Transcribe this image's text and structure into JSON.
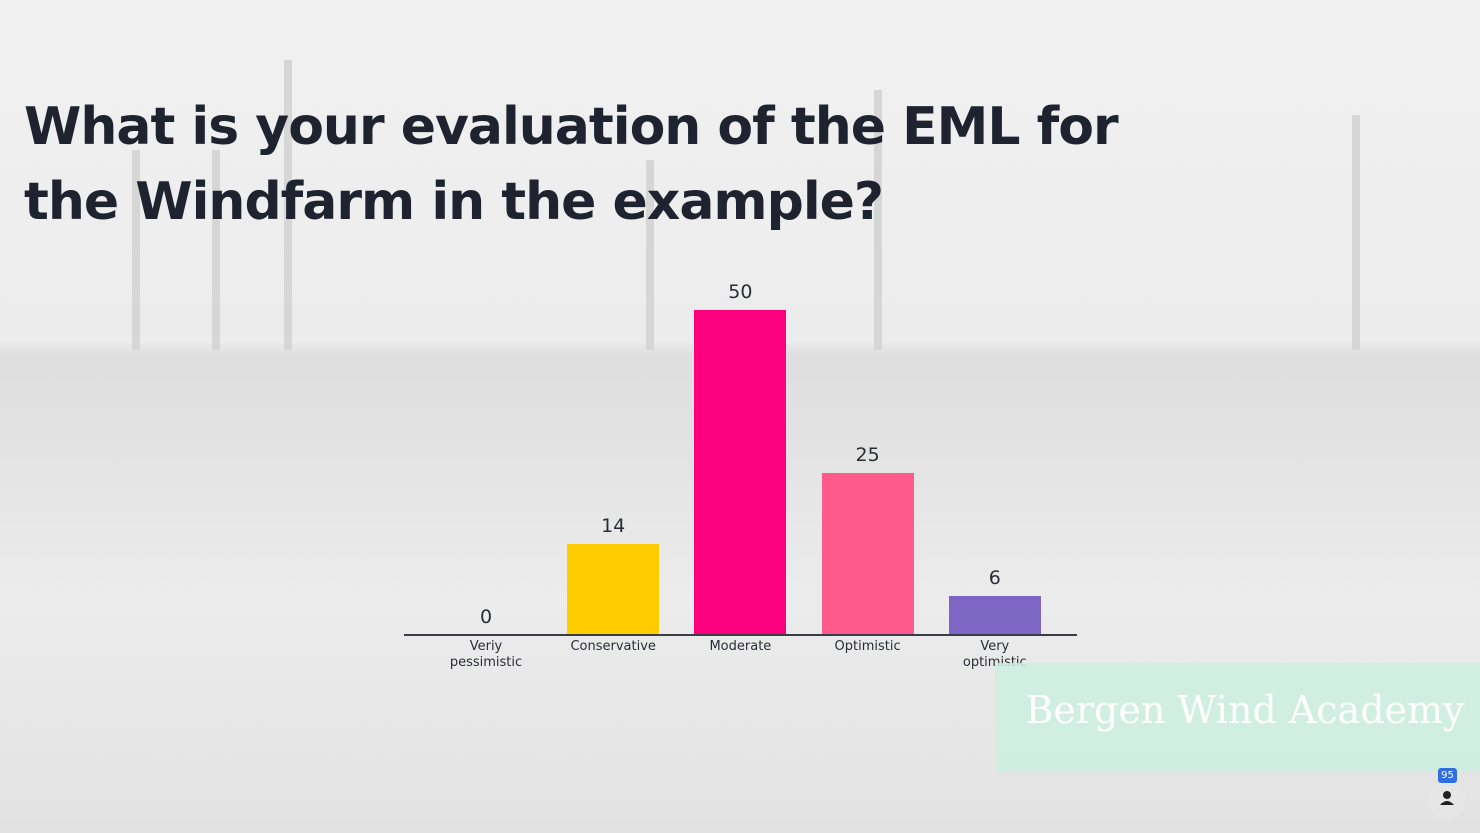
{
  "chart_data": {
    "type": "bar",
    "title": "What is your evaluation of the EML for the Windfarm in the example?",
    "categories": [
      "Veriy pessimistic",
      "Conservative",
      "Moderate",
      "Optimistic",
      "Very optimistic"
    ],
    "values": [
      0,
      14,
      50,
      25,
      6
    ],
    "colors": [
      "#7e66c4",
      "#ffcc00",
      "#fc0080",
      "#ff5a8c",
      "#7e66c4"
    ]
  },
  "brand": "Bergen Wind Academy",
  "participants": 95
}
